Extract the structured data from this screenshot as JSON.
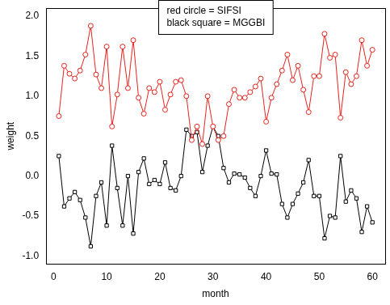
{
  "chart_data": {
    "type": "line",
    "x_label": "month",
    "y_label": "weight",
    "x": [
      1,
      2,
      3,
      4,
      5,
      6,
      7,
      8,
      9,
      10,
      11,
      12,
      13,
      14,
      15,
      16,
      17,
      18,
      19,
      20,
      21,
      22,
      23,
      24,
      25,
      26,
      27,
      28,
      29,
      30,
      31,
      32,
      33,
      34,
      35,
      36,
      37,
      38,
      39,
      40,
      41,
      42,
      43,
      44,
      45,
      46,
      47,
      48,
      49,
      50,
      51,
      52,
      53,
      54,
      55,
      56,
      57,
      58,
      59,
      60
    ],
    "series": [
      {
        "name": "red circle = SIFSI",
        "color": "#e8211c",
        "marker": "circle",
        "values": [
          0.75,
          1.38,
          1.28,
          1.22,
          1.32,
          1.52,
          1.88,
          1.27,
          1.1,
          1.62,
          0.62,
          1.02,
          1.62,
          1.1,
          1.7,
          0.98,
          0.78,
          1.1,
          1.05,
          1.18,
          0.83,
          1.02,
          1.18,
          1.2,
          1.0,
          0.45,
          0.62,
          0.4,
          1.0,
          0.62,
          0.45,
          0.5,
          0.9,
          1.08,
          0.98,
          0.98,
          1.05,
          1.12,
          1.22,
          0.68,
          0.98,
          1.15,
          1.32,
          1.52,
          1.2,
          1.38,
          1.08,
          0.8,
          1.25,
          1.25,
          1.78,
          1.48,
          1.52,
          0.73,
          1.3,
          1.15,
          1.25,
          1.7,
          1.38,
          1.58
        ]
      },
      {
        "name": "black square = MGGBI",
        "color": "#000000",
        "marker": "square",
        "values": [
          0.25,
          -0.38,
          -0.28,
          -0.2,
          -0.3,
          -0.52,
          -0.88,
          -0.25,
          -0.08,
          -0.62,
          0.38,
          -0.15,
          -0.62,
          0.0,
          -0.72,
          0.05,
          0.22,
          -0.1,
          -0.05,
          -0.1,
          0.17,
          -0.15,
          -0.18,
          0.0,
          0.58,
          0.5,
          0.55,
          0.05,
          0.38,
          0.62,
          0.5,
          0.1,
          -0.08,
          0.03,
          0.02,
          -0.02,
          -0.15,
          -0.25,
          0.0,
          0.32,
          0.03,
          0.02,
          -0.35,
          -0.52,
          -0.35,
          -0.22,
          -0.08,
          0.2,
          -0.25,
          -0.25,
          -0.78,
          -0.5,
          -0.52,
          0.25,
          -0.32,
          -0.18,
          -0.28,
          -0.7,
          -0.38,
          -0.58
        ]
      }
    ],
    "xlim": [
      -1.4,
      62.4
    ],
    "xticks": [
      0,
      10,
      20,
      30,
      40,
      50,
      60
    ],
    "ylim": [
      -1.1,
      2.1
    ],
    "yticks": [
      {
        "value": -1,
        "label": "-1.0"
      },
      -0.5,
      {
        "value": 0,
        "label": "0.0"
      },
      0.5,
      {
        "value": 1,
        "label": "1.0"
      },
      1.5,
      {
        "value": 2,
        "label": "2.0"
      }
    ],
    "grid": false,
    "legend": "top"
  }
}
